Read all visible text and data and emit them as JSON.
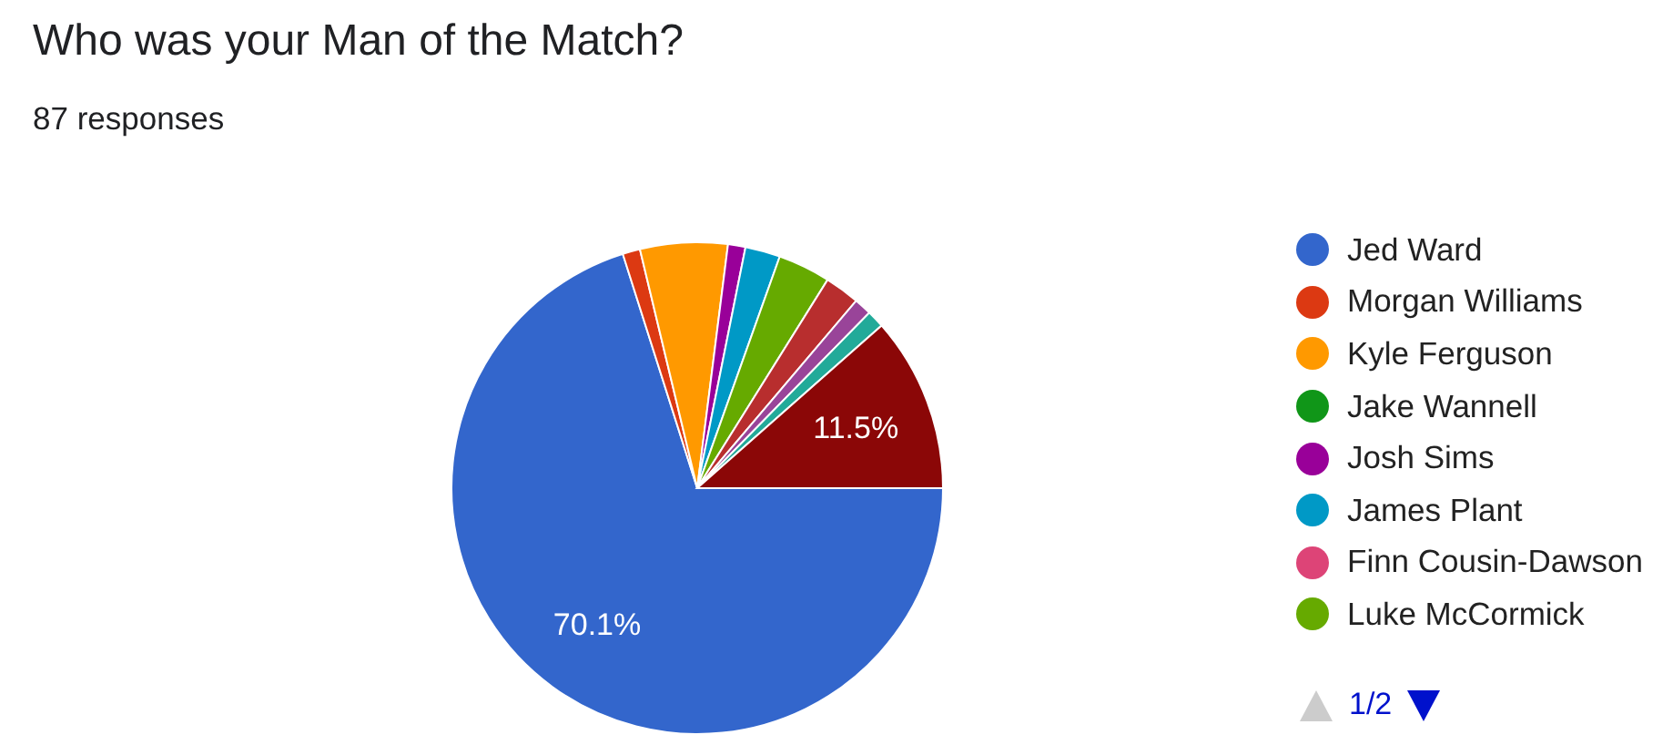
{
  "chart_data": {
    "type": "pie",
    "title": "Who was your Man of the Match?",
    "subtitle": "87 responses",
    "categories": [
      "Jed Ward",
      "Morgan Williams",
      "Kyle Ferguson",
      "Jake Wannell",
      "Josh Sims",
      "James Plant",
      "Finn Cousin-Dawson",
      "Luke McCormick",
      null,
      null,
      null,
      null
    ],
    "values": [
      70.1,
      1.15,
      5.75,
      0,
      1.15,
      2.3,
      0,
      3.45,
      2.3,
      1.15,
      1.15,
      11.5
    ],
    "colors": [
      "#3366cc",
      "#dc3912",
      "#ff9900",
      "#109618",
      "#990099",
      "#0099c6",
      "#dd4477",
      "#66aa00",
      "#b82e2e",
      "#994499",
      "#22aa99",
      "#8b0707"
    ],
    "value_labels": [
      "70.1%",
      null,
      null,
      null,
      null,
      null,
      null,
      null,
      null,
      null,
      null,
      "11.5%"
    ],
    "legend": "right",
    "annotations": [
      "1/2"
    ]
  }
}
